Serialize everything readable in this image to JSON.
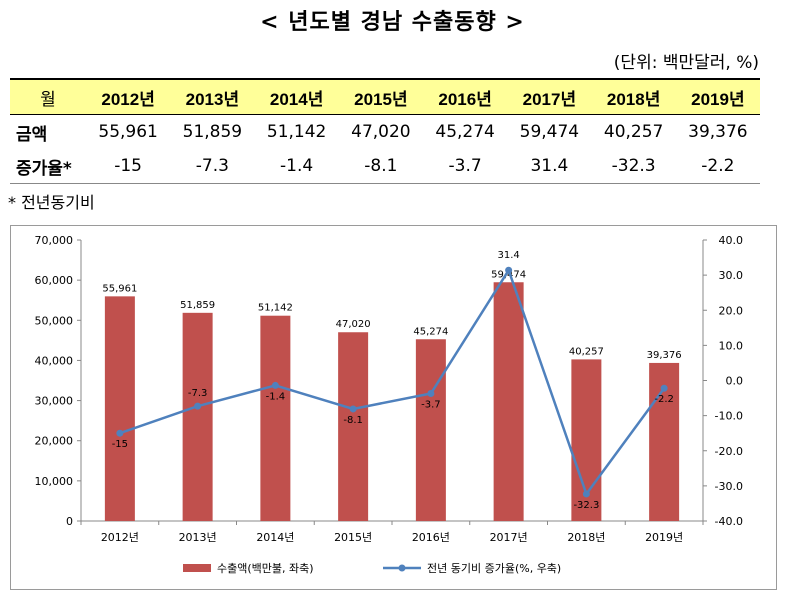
{
  "page": {
    "title": "< 년도별 경남 수출동향 >",
    "unit": "(단위: 백만달러, %)",
    "note": "* 전년동기비"
  },
  "table": {
    "header_label": "월",
    "years": [
      "2012년",
      "2013년",
      "2014년",
      "2015년",
      "2016년",
      "2017년",
      "2018년",
      "2019년"
    ],
    "rows": [
      {
        "label": "금액",
        "values": [
          "55,961",
          "51,859",
          "51,142",
          "47,020",
          "45,274",
          "59,474",
          "40,257",
          "39,376"
        ]
      },
      {
        "label": "증가율*",
        "values": [
          "-15",
          "-7.3",
          "-1.4",
          "-8.1",
          "-3.7",
          "31.4",
          "-32.3",
          "-2.2"
        ]
      }
    ]
  },
  "chart_data": {
    "type": "bar",
    "categories": [
      "2012년",
      "2013년",
      "2014년",
      "2015년",
      "2016년",
      "2017년",
      "2018년",
      "2019년"
    ],
    "series": [
      {
        "name": "수출액(백만불, 좌축)",
        "type": "bar",
        "axis": "left",
        "color": "#c0504d",
        "values": [
          55961,
          51859,
          51142,
          47020,
          45274,
          59474,
          40257,
          39376
        ],
        "labels": [
          "55,961",
          "51,859",
          "51,142",
          "47,020",
          "45,274",
          "59,474",
          "40,257",
          "39,376"
        ]
      },
      {
        "name": "전년 동기비 증가율(%, 우축)",
        "type": "line",
        "axis": "right",
        "color": "#4f81bd",
        "values": [
          -15,
          -7.3,
          -1.4,
          -8.1,
          -3.7,
          31.4,
          -32.3,
          -2.2
        ],
        "labels": [
          "-15",
          "-7.3",
          "-1.4",
          "-8.1",
          "-3.7",
          "31.4",
          "-32.3",
          "-2.2"
        ]
      }
    ],
    "y_left": {
      "lim": [
        0,
        70000
      ],
      "ticks": [
        "0",
        "10,000",
        "20,000",
        "30,000",
        "40,000",
        "50,000",
        "60,000",
        "70,000"
      ]
    },
    "y_right": {
      "lim": [
        -40,
        40
      ],
      "ticks": [
        "-40.0",
        "-30.0",
        "-20.0",
        "-10.0",
        "0.0",
        "10.0",
        "20.0",
        "30.0",
        "40.0"
      ]
    },
    "grid": false,
    "legend": "bottom"
  }
}
